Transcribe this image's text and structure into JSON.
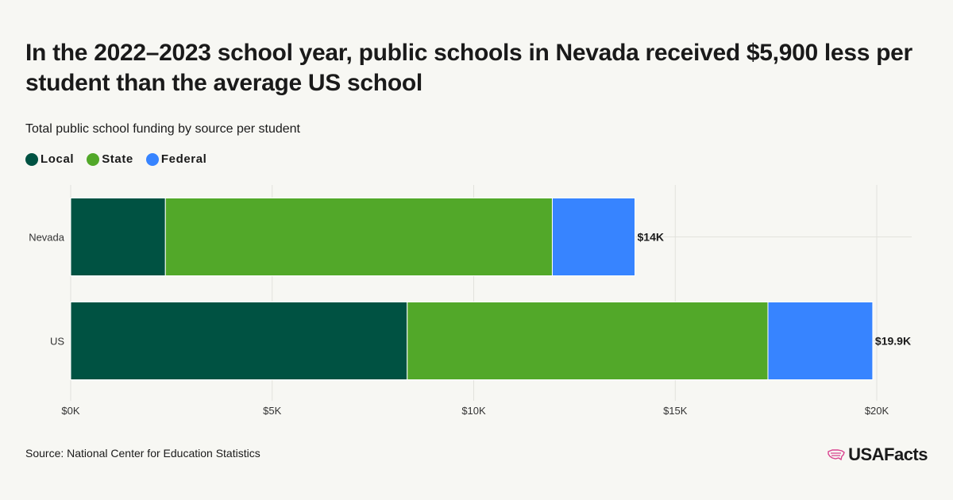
{
  "title": "In the 2022–2023 school year, public schools in Nevada received $5,900 less per student than the average US school",
  "subtitle": "Total public school funding by source per student",
  "source": "Source: National Center for Education Statistics",
  "logo": "USAFacts",
  "colors": {
    "local": "#005242",
    "state": "#52a829",
    "federal": "#3784ff"
  },
  "chart_data": {
    "type": "bar",
    "orientation": "horizontal",
    "stacked": true,
    "categories": [
      "Nevada",
      "US"
    ],
    "series": [
      {
        "name": "Local",
        "values": [
          2350,
          8350
        ]
      },
      {
        "name": "State",
        "values": [
          9600,
          8950
        ]
      },
      {
        "name": "Federal",
        "values": [
          2050,
          2600
        ]
      }
    ],
    "totals": [
      14000,
      19900
    ],
    "total_labels": [
      "$14K",
      "$19.9K"
    ],
    "xlim": [
      0,
      20000
    ],
    "xticks": [
      0,
      5000,
      10000,
      15000,
      20000
    ],
    "xtick_labels": [
      "$0K",
      "$5K",
      "$10K",
      "$15K",
      "$20K"
    ],
    "title": "In the 2022–2023 school year, public schools in Nevada received $5,900 less per student than the average US school",
    "xlabel": "",
    "ylabel": "",
    "grid": true,
    "legend_position": "top-left"
  }
}
